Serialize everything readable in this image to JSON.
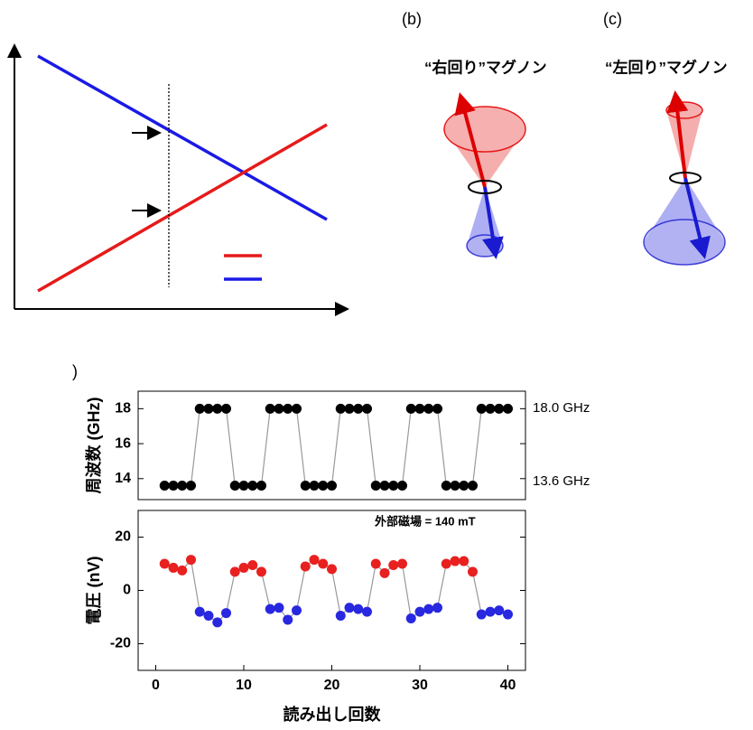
{
  "panels": {
    "d_label": ")",
    "b_label": "(b)",
    "c_label": "(c)",
    "b_title": "“右回り”マグノン",
    "c_title": "“左回り”マグノン"
  },
  "chart_data": [
    {
      "type": "line",
      "ylabel": "周波数 (GHz)",
      "annotations": [
        "18.0 GHz",
        "13.6 GHz"
      ],
      "x": [
        1,
        2,
        3,
        4,
        5,
        6,
        7,
        8,
        9,
        10,
        11,
        12,
        13,
        14,
        15,
        16,
        17,
        18,
        19,
        20,
        21,
        22,
        23,
        24,
        25,
        26,
        27,
        28,
        29,
        30,
        31,
        32,
        33,
        34,
        35,
        36,
        37,
        38,
        39,
        40
      ],
      "xlim": [
        -2,
        42
      ],
      "ylim": [
        12.8,
        19
      ],
      "yticks": [
        14,
        16,
        18
      ],
      "series": [
        {
          "color": "#000000",
          "line_color": "#999999",
          "values": [
            13.6,
            13.6,
            13.6,
            13.6,
            18,
            18,
            18,
            18,
            13.6,
            13.6,
            13.6,
            13.6,
            18,
            18,
            18,
            18,
            13.6,
            13.6,
            13.6,
            13.6,
            18,
            18,
            18,
            18,
            13.6,
            13.6,
            13.6,
            13.6,
            18,
            18,
            18,
            18,
            13.6,
            13.6,
            13.6,
            13.6,
            18,
            18,
            18,
            18
          ]
        }
      ]
    },
    {
      "type": "line",
      "ylabel": "電圧 (nV)",
      "xlabel": "読み出し回数",
      "annotations": [
        "外部磁場 = 140 mT"
      ],
      "x": [
        1,
        2,
        3,
        4,
        5,
        6,
        7,
        8,
        9,
        10,
        11,
        12,
        13,
        14,
        15,
        16,
        17,
        18,
        19,
        20,
        21,
        22,
        23,
        24,
        25,
        26,
        27,
        28,
        29,
        30,
        31,
        32,
        33,
        34,
        35,
        36,
        37,
        38,
        39,
        40
      ],
      "xlim": [
        -2,
        42
      ],
      "ylim": [
        -30,
        30
      ],
      "xticks": [
        0,
        10,
        20,
        30,
        40
      ],
      "yticks": [
        -20,
        0,
        20
      ],
      "series": [
        {
          "line_color": "#999999",
          "values": [
            10,
            8.5,
            7.5,
            11.5,
            -8,
            -9.5,
            -12,
            -8.5,
            7,
            8.5,
            9.5,
            7,
            -7,
            -6.5,
            -11,
            -7.5,
            9,
            11.5,
            10,
            8,
            -9.5,
            -6.5,
            -7,
            -8,
            10,
            6.5,
            9.5,
            10,
            -10.5,
            -8,
            -7,
            -6.5,
            10,
            11,
            11,
            7,
            -9,
            -8,
            -7.5,
            -9
          ],
          "point_colors": [
            "#e82020",
            "#e82020",
            "#e82020",
            "#e82020",
            "#2828e0",
            "#2828e0",
            "#2828e0",
            "#2828e0",
            "#e82020",
            "#e82020",
            "#e82020",
            "#e82020",
            "#2828e0",
            "#2828e0",
            "#2828e0",
            "#2828e0",
            "#e82020",
            "#e82020",
            "#e82020",
            "#e82020",
            "#2828e0",
            "#2828e0",
            "#2828e0",
            "#2828e0",
            "#e82020",
            "#e82020",
            "#e82020",
            "#e82020",
            "#2828e0",
            "#2828e0",
            "#2828e0",
            "#2828e0",
            "#e82020",
            "#e82020",
            "#e82020",
            "#e82020",
            "#2828e0",
            "#2828e0",
            "#2828e0",
            "#2828e0"
          ]
        }
      ]
    }
  ]
}
